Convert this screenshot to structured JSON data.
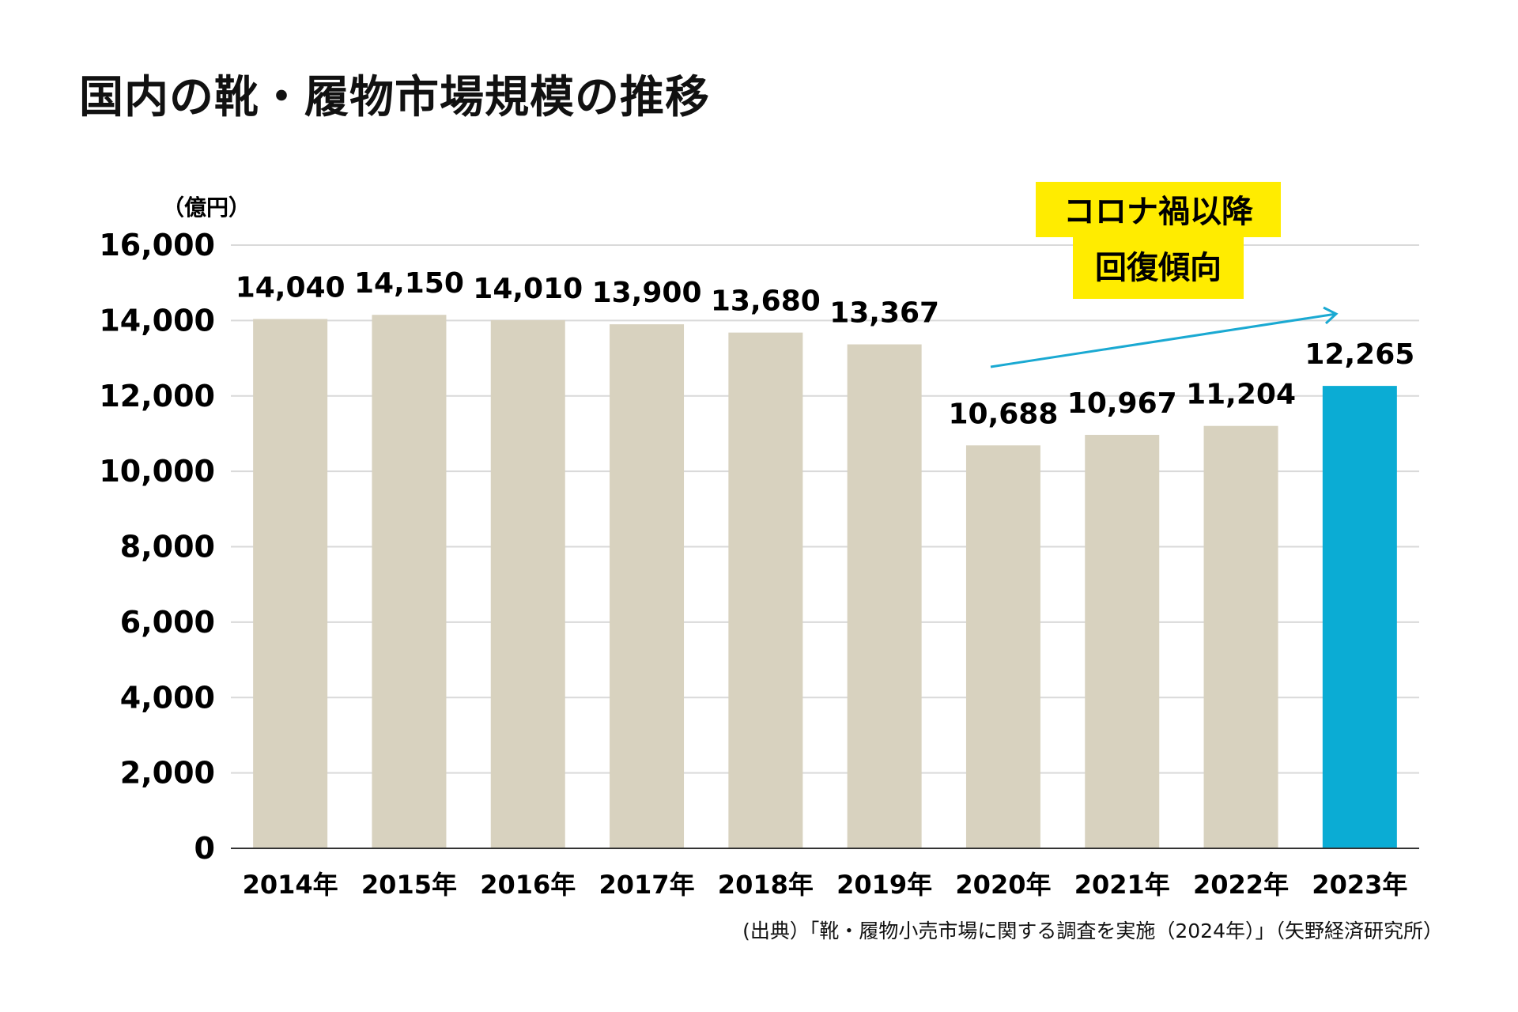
{
  "chart_data": {
    "type": "bar",
    "title": "国内の靴・履物市場規模の推移",
    "unit_label": "（億円）",
    "categories": [
      "2014年",
      "2015年",
      "2016年",
      "2017年",
      "2018年",
      "2019年",
      "2020年",
      "2021年",
      "2022年",
      "2023年"
    ],
    "values": [
      14040,
      14150,
      14010,
      13900,
      13680,
      13367,
      10688,
      10967,
      11204,
      12265
    ],
    "value_labels": [
      "14,040",
      "14,150",
      "14,010",
      "13,900",
      "13,680",
      "13,367",
      "10,688",
      "10,967",
      "11,204",
      "12,265"
    ],
    "ylim": [
      0,
      16000
    ],
    "yticks": [
      0,
      2000,
      4000,
      6000,
      8000,
      10000,
      12000,
      14000,
      16000
    ],
    "ytick_labels": [
      "0",
      "2,000",
      "4,000",
      "6,000",
      "8,000",
      "10,000",
      "12,000",
      "14,000",
      "16,000"
    ],
    "grid": true,
    "bar_color": "#d8d2bf",
    "highlight_color": "#0bacd4",
    "highlight_index": 9,
    "annotation": {
      "lines": [
        "コロナ禍以降",
        "回復傾向"
      ],
      "background": "#ffec00",
      "arrow_color": "#1aa9d2"
    },
    "source_note": "(出典）「靴・履物小売市場に関する調査を実施（2024年）」（矢野経済研究所）"
  }
}
